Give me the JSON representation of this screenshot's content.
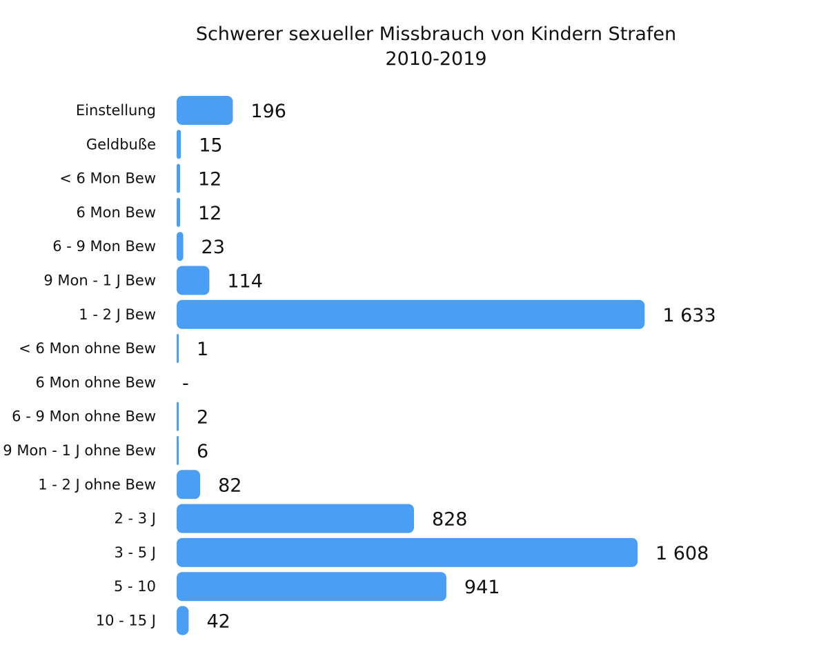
{
  "chart_data": {
    "type": "bar",
    "orientation": "horizontal",
    "title": "Schwerer sexueller Missbrauch von Kindern Strafen",
    "subtitle": "2010-2019",
    "xlabel": "",
    "ylabel": "",
    "grid": false,
    "legend": false,
    "xlim": [
      0,
      1700
    ],
    "categories": [
      "Einstellung",
      "Geldbuße",
      "< 6 Mon Bew",
      "6 Mon Bew",
      "6 - 9 Mon Bew",
      "9 Mon - 1 J Bew",
      "1 - 2 J Bew",
      "< 6 Mon ohne Bew",
      "6 Mon ohne Bew",
      "6 - 9 Mon ohne Bew",
      "9 Mon - 1 J ohne Bew",
      "1 - 2 J ohne Bew",
      "2 - 3 J",
      "3 - 5 J",
      "5 - 10",
      "10 - 15 J"
    ],
    "values": [
      196,
      15,
      12,
      12,
      23,
      114,
      1633,
      1,
      0,
      2,
      6,
      82,
      828,
      1608,
      941,
      42
    ],
    "value_labels": [
      "196",
      "15",
      "12",
      "12",
      "23",
      "114",
      "1 633",
      "1",
      "-",
      "2",
      "6",
      "82",
      "828",
      "1 608",
      "941",
      "42"
    ],
    "bar_color": "#4a9ff5",
    "text_color": "#111111"
  }
}
